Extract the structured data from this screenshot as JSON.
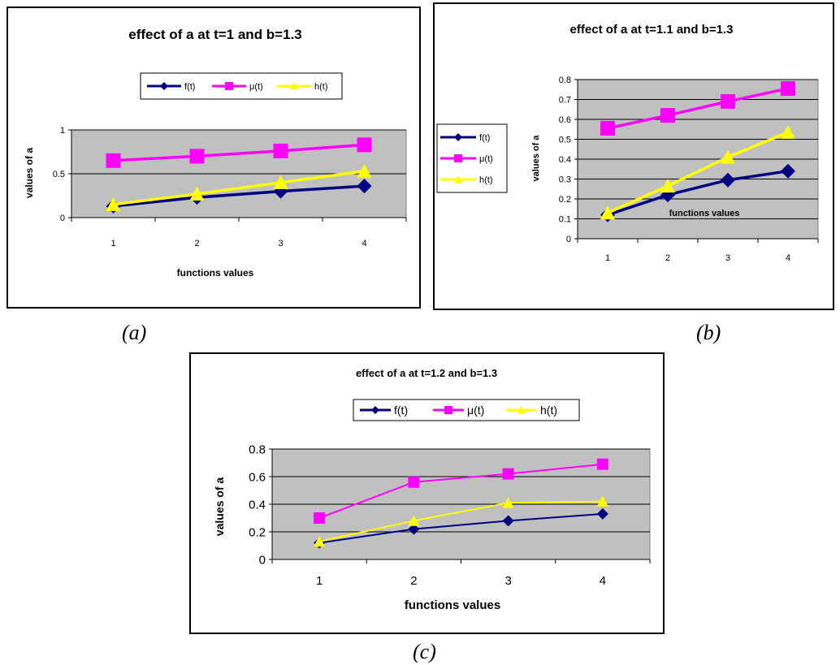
{
  "captions": [
    "(a)",
    "(b)",
    "(c)"
  ],
  "colors": {
    "f": "#000080",
    "mu": "#FF00FF",
    "h": "#FFFF00",
    "plot_bg": "#C0C0C0"
  },
  "chart_data": [
    {
      "type": "line",
      "title": "effect of a at t=1 and b=1.3",
      "xlabel": "functions values",
      "ylabel": "values of a",
      "categories": [
        "1",
        "2",
        "3",
        "4"
      ],
      "ylim": [
        0,
        1
      ],
      "yticks": [
        "0",
        "0.5",
        "1"
      ],
      "grid": true,
      "legend": "top",
      "series": [
        {
          "name": "f(t)",
          "values": [
            0.13,
            0.23,
            0.3,
            0.36
          ]
        },
        {
          "name": "μ(t)",
          "values": [
            0.65,
            0.7,
            0.76,
            0.83
          ]
        },
        {
          "name": "h(t)",
          "values": [
            0.15,
            0.27,
            0.4,
            0.53
          ]
        }
      ]
    },
    {
      "type": "line",
      "title": "effect of a at t=1.1 and b=1.3",
      "xlabel": "functions values",
      "ylabel": "values of a",
      "categories": [
        "1",
        "2",
        "3",
        "4"
      ],
      "ylim": [
        0,
        0.8
      ],
      "yticks": [
        "0",
        "0.1",
        "0.2",
        "0.3",
        "0.4",
        "0.5",
        "0.6",
        "0.7",
        "0.8"
      ],
      "grid": true,
      "legend": "left",
      "series": [
        {
          "name": "f(t)",
          "values": [
            0.12,
            0.22,
            0.295,
            0.34
          ]
        },
        {
          "name": "μ(t)",
          "values": [
            0.555,
            0.62,
            0.69,
            0.755
          ]
        },
        {
          "name": "h(t)",
          "values": [
            0.13,
            0.265,
            0.41,
            0.535
          ]
        }
      ]
    },
    {
      "type": "line",
      "title": "effect of a at t=1.2 and b=1.3",
      "xlabel": "functions values",
      "ylabel": "values of a",
      "categories": [
        "1",
        "2",
        "3",
        "4"
      ],
      "ylim": [
        0,
        0.8
      ],
      "yticks": [
        "0",
        "0.2",
        "0.4",
        "0.6",
        "0.8"
      ],
      "grid": true,
      "legend": "top",
      "series": [
        {
          "name": "f(t)",
          "values": [
            0.12,
            0.22,
            0.28,
            0.33
          ]
        },
        {
          "name": "μ(t)",
          "values": [
            0.3,
            0.56,
            0.62,
            0.69
          ]
        },
        {
          "name": "h(t)",
          "values": [
            0.13,
            0.28,
            0.41,
            0.42
          ]
        }
      ]
    }
  ]
}
